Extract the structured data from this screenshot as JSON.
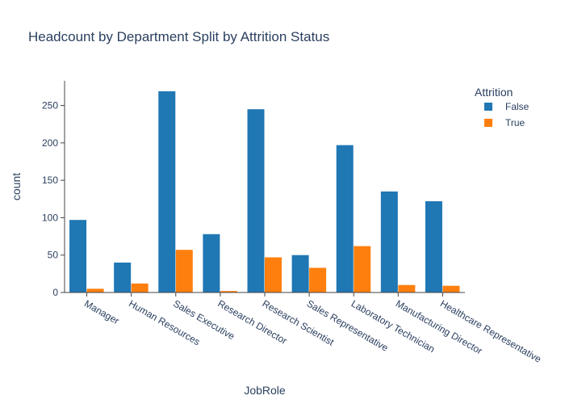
{
  "chart_data": {
    "type": "bar",
    "title": "Headcount by Department Split by Attrition Status",
    "xlabel": "JobRole",
    "ylabel": "count",
    "ylim": [
      0,
      283
    ],
    "yticks": [
      0,
      50,
      100,
      150,
      200,
      250
    ],
    "categories": [
      "Manager",
      "Human Resources",
      "Sales Executive",
      "Research Director",
      "Research Scientist",
      "Sales Representative",
      "Laboratory Technician",
      "Manufacturing Director",
      "Healthcare Representative"
    ],
    "series": [
      {
        "name": "False",
        "color": "#1f77b4",
        "values": [
          97,
          40,
          269,
          78,
          245,
          50,
          197,
          135,
          122
        ]
      },
      {
        "name": "True",
        "color": "#ff7f0e",
        "values": [
          5,
          12,
          57,
          2,
          47,
          33,
          62,
          10,
          9
        ]
      }
    ],
    "legend": {
      "title": "Attrition",
      "placement": "top-right"
    },
    "grid": false
  }
}
